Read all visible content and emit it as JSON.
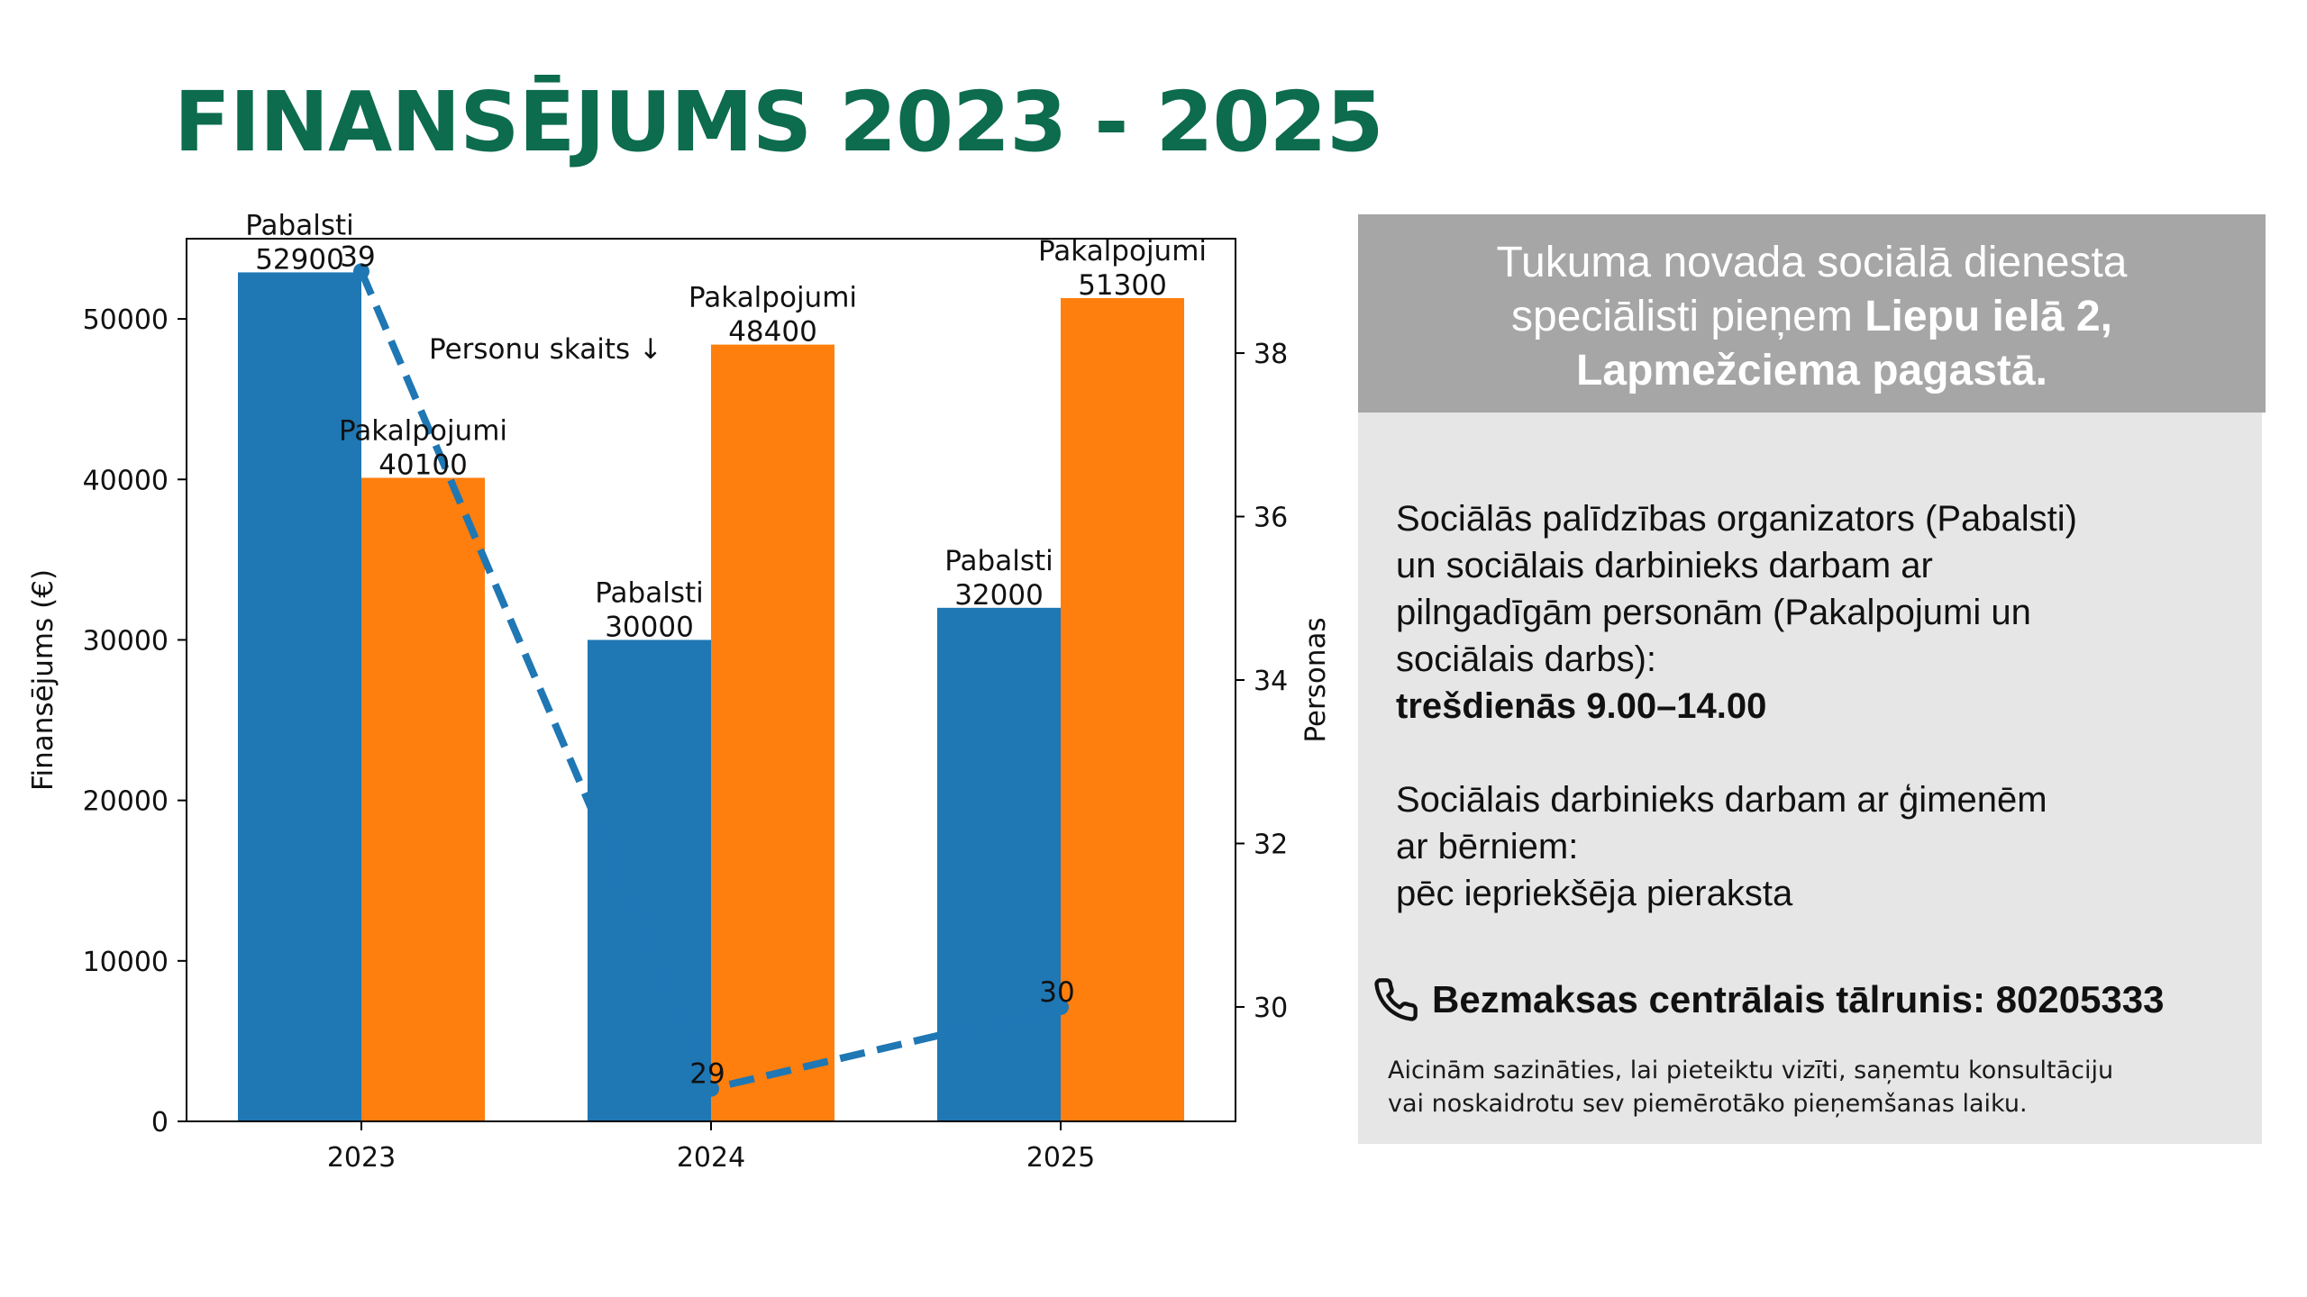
{
  "page": {
    "title": "FINANSĒJUMS 2023 - 2025"
  },
  "chart_data": {
    "type": "bar",
    "categories": [
      "2023",
      "2024",
      "2025"
    ],
    "series": [
      {
        "name": "Pabalsti",
        "values": [
          52900,
          30000,
          32000
        ],
        "color": "#1f77b4"
      },
      {
        "name": "Pakalpojumi",
        "values": [
          40100,
          48400,
          51300
        ],
        "color": "#ff7f0e"
      }
    ],
    "ylabel": "Finansējums (€)",
    "ylim": [
      0,
      55000
    ],
    "yticks": [
      0,
      10000,
      20000,
      30000,
      40000,
      50000
    ],
    "secondary_axis": {
      "type": "line",
      "ylabel": "Personas",
      "ylim": [
        28.6,
        39.4
      ],
      "yticks": [
        30,
        32,
        34,
        36,
        38
      ],
      "values": [
        39,
        29,
        30
      ],
      "color": "#1f77b4",
      "style": "dashed"
    },
    "annotation": "Personu skaits ↓",
    "grid": false
  },
  "info": {
    "header": {
      "line1": "Tukuma novada sociālā dienesta",
      "line2_plain": "speciālisti pieņem ",
      "line2_bold": "Liepu ielā 2,",
      "line3_bold": "Lapmežciema pagastā."
    },
    "block1": {
      "lines": [
        "Sociālās palīdzības organizators (Pabalsti)",
        "un sociālais darbinieks darbam ar",
        "pilngadīgām personām (Pakalpojumi un",
        "sociālais darbs):"
      ],
      "schedule": "trešdienās 9.00–14.00"
    },
    "block2": {
      "lines": [
        "Sociālais darbinieks darbam ar ģimenēm",
        "ar bērniem:",
        "pēc iepriekšēja pieraksta"
      ]
    },
    "phone": {
      "icon": "phone-icon",
      "text": "Bezmaksas centrālais tālrunis: 80205333"
    },
    "note": {
      "line1": "Aicinām sazināties, lai pieteiktu vizīti, saņemtu konsultāciju",
      "line2": "vai noskaidrotu sev piemērotāko pieņemšanas laiku."
    }
  }
}
